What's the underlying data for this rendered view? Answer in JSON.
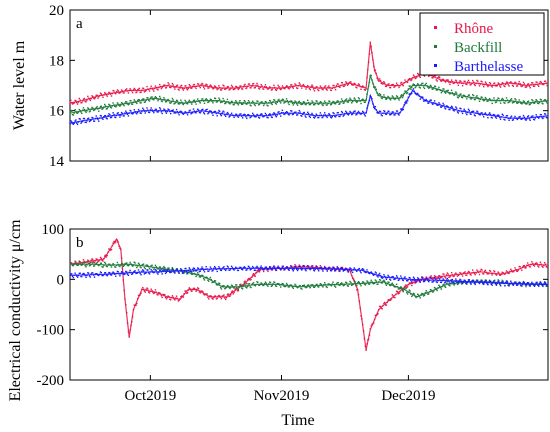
{
  "figure": {
    "xlabel": "Time"
  },
  "colors": {
    "Rhône": "#e8174a",
    "Backfill": "#1d7a3a",
    "Barthelasse": "#1a1aff"
  },
  "chart_data": [
    {
      "type": "scatter",
      "panel_label": "a",
      "ylabel": "Water level m",
      "ylim": [
        14,
        20
      ],
      "yticks": [
        14,
        16,
        18,
        20
      ],
      "xlim": [
        "2019-09-12",
        "2020-01-03"
      ],
      "xticks": [
        {
          "date": "2019-10-01",
          "label": "Oct2019"
        },
        {
          "date": "2019-11-01",
          "label": "Nov2019"
        },
        {
          "date": "2019-12-01",
          "label": "Dec2019"
        }
      ],
      "legend": {
        "position": "top-right",
        "entries": [
          "Rhône",
          "Backfill",
          "Barthelasse"
        ]
      },
      "grid": false,
      "series": [
        {
          "name": "Rhône",
          "x": [
            "2019-09-12",
            "2019-09-15",
            "2019-09-19",
            "2019-09-22",
            "2019-09-26",
            "2019-09-29",
            "2019-10-02",
            "2019-10-05",
            "2019-10-09",
            "2019-10-13",
            "2019-10-17",
            "2019-10-21",
            "2019-10-25",
            "2019-10-29",
            "2019-11-01",
            "2019-11-05",
            "2019-11-09",
            "2019-11-13",
            "2019-11-17",
            "2019-11-21",
            "2019-11-22",
            "2019-11-23",
            "2019-11-24",
            "2019-11-26",
            "2019-11-29",
            "2019-12-02",
            "2019-12-05",
            "2019-12-09",
            "2019-12-13",
            "2019-12-17",
            "2019-12-21",
            "2019-12-25",
            "2019-12-29",
            "2020-01-03"
          ],
          "y": [
            16.3,
            16.4,
            16.6,
            16.7,
            16.8,
            16.8,
            16.9,
            17.0,
            16.9,
            17.0,
            16.9,
            16.9,
            17.0,
            16.9,
            16.9,
            17.0,
            16.9,
            16.9,
            17.1,
            16.9,
            18.7,
            17.6,
            17.2,
            17.0,
            17.0,
            17.3,
            17.5,
            17.2,
            17.1,
            17.1,
            17.0,
            17.1,
            17.0,
            17.1
          ]
        },
        {
          "name": "Backfill",
          "x": [
            "2019-09-12",
            "2019-09-15",
            "2019-09-19",
            "2019-09-22",
            "2019-09-26",
            "2019-09-29",
            "2019-10-02",
            "2019-10-05",
            "2019-10-09",
            "2019-10-13",
            "2019-10-17",
            "2019-10-21",
            "2019-10-25",
            "2019-10-29",
            "2019-11-01",
            "2019-11-05",
            "2019-11-09",
            "2019-11-13",
            "2019-11-17",
            "2019-11-21",
            "2019-11-22",
            "2019-11-23",
            "2019-11-24",
            "2019-11-26",
            "2019-11-29",
            "2019-12-02",
            "2019-12-05",
            "2019-12-09",
            "2019-12-13",
            "2019-12-17",
            "2019-12-21",
            "2019-12-25",
            "2019-12-29",
            "2020-01-03"
          ],
          "y": [
            15.9,
            16.0,
            16.1,
            16.2,
            16.3,
            16.4,
            16.5,
            16.4,
            16.3,
            16.4,
            16.4,
            16.3,
            16.3,
            16.3,
            16.4,
            16.3,
            16.3,
            16.3,
            16.4,
            16.4,
            17.4,
            16.9,
            16.6,
            16.5,
            16.5,
            17.0,
            17.0,
            16.8,
            16.6,
            16.5,
            16.4,
            16.4,
            16.3,
            16.4
          ]
        },
        {
          "name": "Barthelasse",
          "x": [
            "2019-09-12",
            "2019-09-15",
            "2019-09-19",
            "2019-09-22",
            "2019-09-26",
            "2019-09-29",
            "2019-10-02",
            "2019-10-05",
            "2019-10-09",
            "2019-10-13",
            "2019-10-17",
            "2019-10-21",
            "2019-10-25",
            "2019-10-29",
            "2019-11-01",
            "2019-11-05",
            "2019-11-09",
            "2019-11-13",
            "2019-11-17",
            "2019-11-21",
            "2019-11-22",
            "2019-11-23",
            "2019-11-24",
            "2019-11-26",
            "2019-11-29",
            "2019-12-02",
            "2019-12-05",
            "2019-12-09",
            "2019-12-13",
            "2019-12-17",
            "2019-12-21",
            "2019-12-25",
            "2019-12-29",
            "2020-01-03"
          ],
          "y": [
            15.5,
            15.6,
            15.7,
            15.8,
            15.9,
            16.0,
            16.0,
            16.0,
            15.9,
            16.0,
            15.9,
            15.8,
            15.8,
            15.8,
            15.9,
            15.9,
            15.8,
            15.8,
            15.9,
            15.9,
            16.6,
            16.1,
            15.9,
            15.9,
            15.9,
            16.8,
            16.4,
            16.2,
            16.0,
            15.9,
            15.8,
            15.7,
            15.7,
            15.8
          ]
        }
      ]
    },
    {
      "type": "scatter",
      "panel_label": "b",
      "ylabel": "Electrical conductivity μ/cm",
      "ylim": [
        -200,
        100
      ],
      "yticks": [
        -200,
        -100,
        0,
        100
      ],
      "xlim": [
        "2019-09-12",
        "2020-01-03"
      ],
      "xticks": [
        {
          "date": "2019-10-01",
          "label": "Oct2019"
        },
        {
          "date": "2019-11-01",
          "label": "Nov2019"
        },
        {
          "date": "2019-12-01",
          "label": "Dec2019"
        }
      ],
      "grid": false,
      "series": [
        {
          "name": "Rhône",
          "x": [
            "2019-09-12",
            "2019-09-16",
            "2019-09-20",
            "2019-09-23",
            "2019-09-24",
            "2019-09-25",
            "2019-09-26",
            "2019-09-27",
            "2019-09-29",
            "2019-10-02",
            "2019-10-05",
            "2019-10-08",
            "2019-10-10",
            "2019-10-12",
            "2019-10-15",
            "2019-10-19",
            "2019-10-23",
            "2019-10-27",
            "2019-11-01",
            "2019-11-06",
            "2019-11-12",
            "2019-11-17",
            "2019-11-19",
            "2019-11-20",
            "2019-11-21",
            "2019-11-22",
            "2019-11-24",
            "2019-11-28",
            "2019-12-01",
            "2019-12-04",
            "2019-12-08",
            "2019-12-13",
            "2019-12-18",
            "2019-12-23",
            "2019-12-27",
            "2019-12-30",
            "2020-01-03"
          ],
          "y": [
            30,
            35,
            40,
            80,
            60,
            -40,
            -115,
            -60,
            -20,
            -25,
            -35,
            -40,
            -20,
            -20,
            -35,
            -35,
            -10,
            20,
            22,
            25,
            22,
            20,
            -20,
            -80,
            -140,
            -100,
            -60,
            -30,
            -10,
            0,
            5,
            10,
            15,
            10,
            20,
            30,
            28
          ]
        },
        {
          "name": "Backfill",
          "x": [
            "2019-09-12",
            "2019-09-17",
            "2019-09-22",
            "2019-09-26",
            "2019-10-01",
            "2019-10-05",
            "2019-10-09",
            "2019-10-12",
            "2019-10-15",
            "2019-10-18",
            "2019-10-22",
            "2019-10-26",
            "2019-10-31",
            "2019-11-05",
            "2019-11-10",
            "2019-11-15",
            "2019-11-20",
            "2019-11-25",
            "2019-11-30",
            "2019-12-03",
            "2019-12-06",
            "2019-12-10",
            "2019-12-15",
            "2019-12-20",
            "2019-12-25",
            "2019-12-30",
            "2020-01-03"
          ],
          "y": [
            30,
            30,
            28,
            30,
            25,
            20,
            15,
            10,
            0,
            -15,
            -15,
            -10,
            -10,
            -15,
            -12,
            -10,
            -8,
            -5,
            -20,
            -35,
            -25,
            -10,
            -5,
            -5,
            -8,
            -10,
            -10
          ]
        },
        {
          "name": "Barthelasse",
          "x": [
            "2019-09-12",
            "2019-09-20",
            "2019-09-28",
            "2019-10-06",
            "2019-10-14",
            "2019-10-22",
            "2019-10-30",
            "2019-11-07",
            "2019-11-15",
            "2019-11-20",
            "2019-11-25",
            "2019-12-01",
            "2019-12-08",
            "2019-12-16",
            "2019-12-24",
            "2020-01-03"
          ],
          "y": [
            8,
            10,
            14,
            16,
            20,
            22,
            22,
            22,
            20,
            18,
            5,
            0,
            -2,
            -5,
            -8,
            -10
          ]
        }
      ]
    }
  ]
}
